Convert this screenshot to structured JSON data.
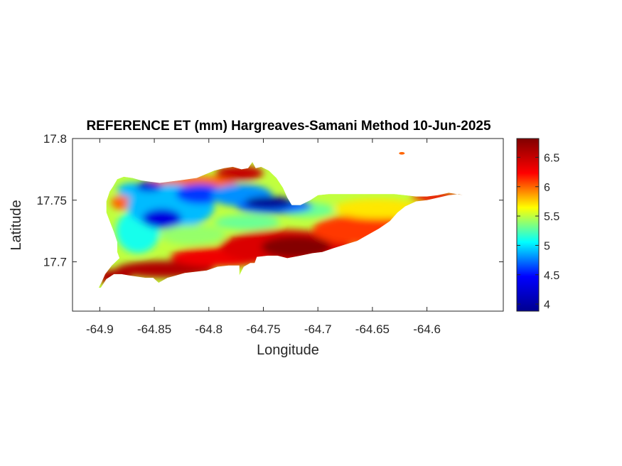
{
  "chart_data": {
    "type": "heatmap",
    "title": "REFERENCE ET (mm) Hargreaves-Samani Method  10-Jun-2025",
    "xlabel": "Longitude",
    "ylabel": "Latitude",
    "xlim": [
      -64.925,
      -64.53
    ],
    "ylim": [
      17.66,
      17.8
    ],
    "x_ticks": [
      -64.9,
      -64.85,
      -64.8,
      -64.75,
      -64.7,
      -64.65,
      -64.6
    ],
    "x_tick_labels": [
      "-64.9",
      "-64.85",
      "-64.8",
      "-64.75",
      "-64.7",
      "-64.65",
      "-64.6"
    ],
    "y_ticks": [
      17.7,
      17.75,
      17.8
    ],
    "y_tick_labels": [
      "17.7",
      "17.75",
      "17.8"
    ],
    "colormap": "jet",
    "colorbar": {
      "range": [
        3.88,
        6.82
      ],
      "ticks": [
        4,
        4.5,
        5,
        5.5,
        6,
        6.5
      ],
      "tick_labels": [
        "4",
        "4.5",
        "5",
        "5.5",
        "6",
        "6.5"
      ],
      "colors": [
        "#00008f",
        "#0000ff",
        "#00ffff",
        "#ffff00",
        "#ff0000",
        "#800000"
      ]
    },
    "grid": false,
    "island_outline": [
      [
        -64.899,
        17.679
      ],
      [
        -64.894,
        17.686
      ],
      [
        -64.887,
        17.69
      ],
      [
        -64.88,
        17.69
      ],
      [
        -64.873,
        17.689
      ],
      [
        -64.866,
        17.688
      ],
      [
        -64.858,
        17.687
      ],
      [
        -64.851,
        17.687
      ],
      [
        -64.846,
        17.683
      ],
      [
        -64.838,
        17.687
      ],
      [
        -64.83,
        17.689
      ],
      [
        -64.822,
        17.691
      ],
      [
        -64.812,
        17.692
      ],
      [
        -64.802,
        17.693
      ],
      [
        -64.792,
        17.696
      ],
      [
        -64.782,
        17.697
      ],
      [
        -64.772,
        17.697
      ],
      [
        -64.772,
        17.689
      ],
      [
        -64.768,
        17.696
      ],
      [
        -64.762,
        17.699
      ],
      [
        -64.758,
        17.699
      ],
      [
        -64.756,
        17.704
      ],
      [
        -64.746,
        17.705
      ],
      [
        -64.737,
        17.705
      ],
      [
        -64.728,
        17.703
      ],
      [
        -64.716,
        17.705
      ],
      [
        -64.705,
        17.707
      ],
      [
        -64.696,
        17.708
      ],
      [
        -64.686,
        17.711
      ],
      [
        -64.675,
        17.714
      ],
      [
        -64.664,
        17.717
      ],
      [
        -64.654,
        17.722
      ],
      [
        -64.644,
        17.727
      ],
      [
        -64.634,
        17.733
      ],
      [
        -64.627,
        17.74
      ],
      [
        -64.62,
        17.745
      ],
      [
        -64.61,
        17.749
      ],
      [
        -64.6,
        17.75
      ],
      [
        -64.59,
        17.752
      ],
      [
        -64.58,
        17.754
      ],
      [
        -64.571,
        17.755
      ],
      [
        -64.567,
        17.754
      ],
      [
        -64.573,
        17.755
      ],
      [
        -64.58,
        17.756
      ],
      [
        -64.59,
        17.754
      ],
      [
        -64.6,
        17.753
      ],
      [
        -64.61,
        17.753
      ],
      [
        -64.62,
        17.754
      ],
      [
        -64.63,
        17.755
      ],
      [
        -64.64,
        17.755
      ],
      [
        -64.65,
        17.755
      ],
      [
        -64.66,
        17.755
      ],
      [
        -64.67,
        17.755
      ],
      [
        -64.68,
        17.755
      ],
      [
        -64.69,
        17.755
      ],
      [
        -64.7,
        17.754
      ],
      [
        -64.707,
        17.75
      ],
      [
        -64.716,
        17.746
      ],
      [
        -64.724,
        17.746
      ],
      [
        -64.728,
        17.752
      ],
      [
        -64.732,
        17.76
      ],
      [
        -64.738,
        17.768
      ],
      [
        -64.745,
        17.774
      ],
      [
        -64.752,
        17.777
      ],
      [
        -64.757,
        17.776
      ],
      [
        -64.76,
        17.781
      ],
      [
        -64.764,
        17.776
      ],
      [
        -64.77,
        17.775
      ],
      [
        -64.778,
        17.777
      ],
      [
        -64.786,
        17.776
      ],
      [
        -64.795,
        17.774
      ],
      [
        -64.803,
        17.771
      ],
      [
        -64.811,
        17.768
      ],
      [
        -64.819,
        17.767
      ],
      [
        -64.827,
        17.766
      ],
      [
        -64.836,
        17.765
      ],
      [
        -64.845,
        17.764
      ],
      [
        -64.854,
        17.765
      ],
      [
        -64.862,
        17.766
      ],
      [
        -64.87,
        17.768
      ],
      [
        -64.878,
        17.769
      ],
      [
        -64.884,
        17.767
      ],
      [
        -64.888,
        17.761
      ],
      [
        -64.891,
        17.757
      ],
      [
        -64.894,
        17.749
      ],
      [
        -64.894,
        17.74
      ],
      [
        -64.891,
        17.733
      ],
      [
        -64.887,
        17.724
      ],
      [
        -64.884,
        17.716
      ],
      [
        -64.884,
        17.708
      ],
      [
        -64.882,
        17.703
      ],
      [
        -64.889,
        17.697
      ],
      [
        -64.895,
        17.69
      ],
      [
        -64.898,
        17.684
      ],
      [
        -64.901,
        17.679
      ]
    ],
    "islets": [
      {
        "lon": -64.623,
        "lat": 17.788,
        "value": 6.0
      }
    ],
    "value_regions": [
      {
        "value": 6.6,
        "lon": -64.887,
        "lat": 17.688,
        "rx": 0.016,
        "ry": 0.006
      },
      {
        "value": 6.6,
        "lon": -64.84,
        "lat": 17.694,
        "rx": 0.045,
        "ry": 0.007
      },
      {
        "value": 6.3,
        "lon": -64.79,
        "lat": 17.704,
        "rx": 0.045,
        "ry": 0.008
      },
      {
        "value": 6.4,
        "lon": -64.73,
        "lat": 17.712,
        "rx": 0.06,
        "ry": 0.014
      },
      {
        "value": 6.8,
        "lon": -64.72,
        "lat": 17.712,
        "rx": 0.032,
        "ry": 0.009
      },
      {
        "value": 6.1,
        "lon": -64.66,
        "lat": 17.726,
        "rx": 0.045,
        "ry": 0.012
      },
      {
        "value": 5.7,
        "lon": -64.645,
        "lat": 17.743,
        "rx": 0.04,
        "ry": 0.008
      },
      {
        "value": 6.3,
        "lon": -64.59,
        "lat": 17.752,
        "rx": 0.025,
        "ry": 0.004
      },
      {
        "value": 5.3,
        "lon": -64.71,
        "lat": 17.742,
        "rx": 0.025,
        "ry": 0.006
      },
      {
        "value": 6.0,
        "lon": -64.815,
        "lat": 17.764,
        "rx": 0.04,
        "ry": 0.006
      },
      {
        "value": 6.5,
        "lon": -64.772,
        "lat": 17.772,
        "rx": 0.022,
        "ry": 0.006
      },
      {
        "value": 6.0,
        "lon": -64.878,
        "lat": 17.748,
        "rx": 0.012,
        "ry": 0.006
      },
      {
        "value": 5.1,
        "lon": -64.865,
        "lat": 17.725,
        "rx": 0.02,
        "ry": 0.018
      },
      {
        "value": 4.9,
        "lon": -64.835,
        "lat": 17.745,
        "rx": 0.04,
        "ry": 0.018
      },
      {
        "value": 4.3,
        "lon": -64.843,
        "lat": 17.735,
        "rx": 0.018,
        "ry": 0.008
      },
      {
        "value": 4.6,
        "lon": -64.808,
        "lat": 17.755,
        "rx": 0.022,
        "ry": 0.008
      },
      {
        "value": 5.4,
        "lon": -64.815,
        "lat": 17.722,
        "rx": 0.03,
        "ry": 0.008
      },
      {
        "value": 4.8,
        "lon": -64.77,
        "lat": 17.754,
        "rx": 0.028,
        "ry": 0.009
      },
      {
        "value": 4.7,
        "lon": -64.74,
        "lat": 17.745,
        "rx": 0.035,
        "ry": 0.006
      },
      {
        "value": 3.9,
        "lon": -64.745,
        "lat": 17.748,
        "rx": 0.022,
        "ry": 0.005
      },
      {
        "value": 5.3,
        "lon": -64.765,
        "lat": 17.732,
        "rx": 0.03,
        "ry": 0.006
      },
      {
        "value": 4.9,
        "lon": -64.87,
        "lat": 17.758,
        "rx": 0.014,
        "ry": 0.006
      },
      {
        "value": 4.3,
        "lon": -64.855,
        "lat": 17.761,
        "rx": 0.012,
        "ry": 0.004
      }
    ]
  }
}
